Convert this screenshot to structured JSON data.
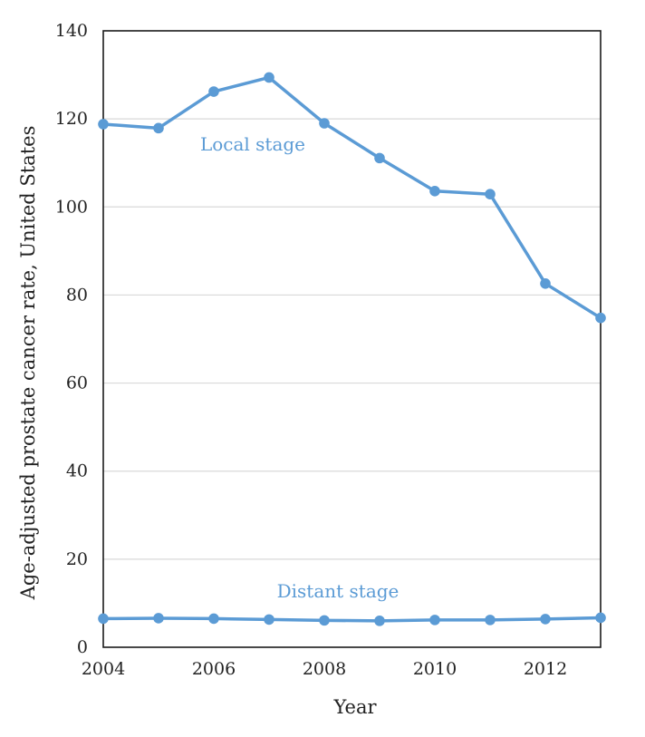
{
  "chart_data": {
    "type": "line",
    "title": "",
    "xlabel": "Year",
    "ylabel": "Age-adjusted prostate cancer rate, United States",
    "x": [
      2004,
      2005,
      2006,
      2007,
      2008,
      2009,
      2010,
      2011,
      2012,
      2013
    ],
    "xlim": [
      2004,
      2013
    ],
    "ylim": [
      0,
      140
    ],
    "x_ticks": [
      "2004",
      "2006",
      "2008",
      "2010",
      "2012"
    ],
    "y_ticks": [
      "0",
      "20",
      "40",
      "60",
      "80",
      "100",
      "120",
      "140"
    ],
    "grid": true,
    "series": [
      {
        "name": "Local stage",
        "color": "#5b9bd5",
        "values": [
          118.8,
          117.9,
          126.2,
          129.4,
          119.0,
          111.1,
          103.6,
          102.9,
          82.6,
          74.8
        ]
      },
      {
        "name": "Distant stage",
        "color": "#5b9bd5",
        "values": [
          6.5,
          6.6,
          6.5,
          6.3,
          6.1,
          6.0,
          6.2,
          6.2,
          6.4,
          6.7
        ]
      }
    ]
  }
}
